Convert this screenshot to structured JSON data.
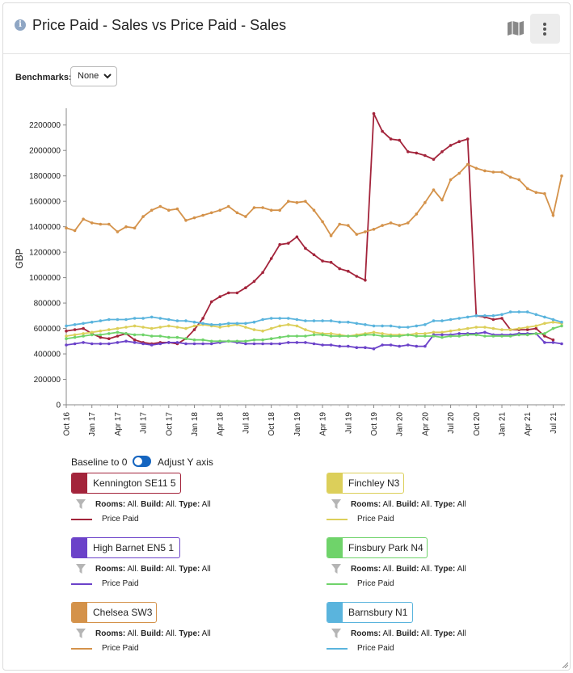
{
  "header": {
    "title": "Price Paid - Sales vs Price Paid - Sales",
    "info_icon": "info-icon",
    "map_icon": "map-icon",
    "menu_icon": "more-vertical-icon"
  },
  "benchmarks": {
    "label": "Benchmarks:",
    "value": "None"
  },
  "controls": {
    "baseline_label": "Baseline to 0",
    "adjust_label": "Adjust Y axis",
    "baseline_on": true
  },
  "chart_data": {
    "type": "line",
    "ylabel": "GBP",
    "ylim": [
      0,
      2300000
    ],
    "yticks": [
      0,
      200000,
      400000,
      600000,
      800000,
      1000000,
      1200000,
      1400000,
      1600000,
      1800000,
      2000000,
      2200000
    ],
    "xtick_labels": [
      "Oct 16",
      "Jan 17",
      "Apr 17",
      "Jul 17",
      "Oct 17",
      "Jan 18",
      "Apr 18",
      "Jul 18",
      "Oct 18",
      "Jan 19",
      "Apr 19",
      "Jul 19",
      "Oct 19",
      "Jan 20",
      "Apr 20",
      "Jul 20",
      "Oct 20",
      "Jan 21",
      "Apr 21",
      "Jul 21"
    ],
    "months_count": 59,
    "series": [
      {
        "name": "Kennington SE11 5",
        "color": "#a3243b",
        "values": [
          580000,
          590000,
          600000,
          560000,
          530000,
          520000,
          540000,
          560000,
          510000,
          490000,
          480000,
          490000,
          490000,
          480000,
          520000,
          590000,
          680000,
          810000,
          850000,
          880000,
          880000,
          920000,
          970000,
          1040000,
          1150000,
          1260000,
          1270000,
          1320000,
          1230000,
          1180000,
          1130000,
          1120000,
          1070000,
          1050000,
          1010000,
          980000,
          2290000,
          2150000,
          2090000,
          2080000,
          1990000,
          1980000,
          1960000,
          1930000,
          1990000,
          2040000,
          2070000,
          2090000,
          700000,
          690000,
          670000,
          680000,
          590000,
          590000,
          590000,
          600000,
          540000,
          510000,
          null
        ]
      },
      {
        "name": "Finchley N3",
        "color": "#dccf5a",
        "values": [
          540000,
          550000,
          560000,
          570000,
          580000,
          590000,
          600000,
          610000,
          620000,
          610000,
          600000,
          610000,
          620000,
          610000,
          600000,
          620000,
          630000,
          620000,
          610000,
          620000,
          630000,
          610000,
          590000,
          580000,
          600000,
          620000,
          630000,
          620000,
          590000,
          570000,
          560000,
          560000,
          550000,
          540000,
          550000,
          560000,
          570000,
          560000,
          550000,
          550000,
          550000,
          560000,
          560000,
          570000,
          570000,
          580000,
          590000,
          600000,
          610000,
          610000,
          600000,
          590000,
          590000,
          600000,
          610000,
          620000,
          640000,
          650000,
          640000
        ]
      },
      {
        "name": "High Barnet EN5 1",
        "color": "#6b42c9",
        "values": [
          470000,
          480000,
          490000,
          480000,
          480000,
          480000,
          490000,
          500000,
          490000,
          480000,
          470000,
          480000,
          490000,
          490000,
          480000,
          480000,
          480000,
          480000,
          490000,
          500000,
          490000,
          480000,
          480000,
          480000,
          480000,
          480000,
          490000,
          490000,
          490000,
          480000,
          470000,
          470000,
          460000,
          460000,
          450000,
          450000,
          440000,
          470000,
          470000,
          460000,
          470000,
          460000,
          460000,
          550000,
          550000,
          550000,
          560000,
          560000,
          560000,
          570000,
          550000,
          550000,
          550000,
          560000,
          560000,
          560000,
          490000,
          490000,
          480000
        ]
      },
      {
        "name": "Finsbury Park N4",
        "color": "#6fd36a",
        "values": [
          520000,
          530000,
          540000,
          550000,
          550000,
          560000,
          570000,
          560000,
          550000,
          550000,
          540000,
          540000,
          530000,
          530000,
          520000,
          510000,
          510000,
          500000,
          500000,
          500000,
          500000,
          500000,
          510000,
          510000,
          520000,
          530000,
          540000,
          540000,
          540000,
          550000,
          550000,
          540000,
          540000,
          540000,
          540000,
          550000,
          550000,
          540000,
          540000,
          540000,
          550000,
          540000,
          540000,
          540000,
          530000,
          540000,
          540000,
          550000,
          550000,
          540000,
          540000,
          540000,
          540000,
          550000,
          550000,
          560000,
          560000,
          600000,
          620000
        ]
      },
      {
        "name": "Chelsea SW3",
        "color": "#d4924a",
        "values": [
          1390000,
          1370000,
          1460000,
          1430000,
          1420000,
          1420000,
          1360000,
          1400000,
          1390000,
          1480000,
          1530000,
          1560000,
          1530000,
          1540000,
          1450000,
          1470000,
          1490000,
          1510000,
          1530000,
          1560000,
          1510000,
          1480000,
          1550000,
          1550000,
          1530000,
          1530000,
          1600000,
          1590000,
          1600000,
          1530000,
          1440000,
          1330000,
          1420000,
          1410000,
          1340000,
          1360000,
          1380000,
          1410000,
          1430000,
          1410000,
          1430000,
          1500000,
          1590000,
          1690000,
          1610000,
          1770000,
          1820000,
          1890000,
          1860000,
          1840000,
          1830000,
          1830000,
          1790000,
          1770000,
          1700000,
          1670000,
          1660000,
          1490000,
          1800000
        ]
      },
      {
        "name": "Barnsbury N1",
        "color": "#5ab4dd",
        "values": [
          620000,
          630000,
          640000,
          650000,
          660000,
          670000,
          670000,
          670000,
          680000,
          680000,
          690000,
          680000,
          670000,
          660000,
          660000,
          650000,
          640000,
          630000,
          630000,
          640000,
          640000,
          640000,
          650000,
          670000,
          680000,
          680000,
          680000,
          670000,
          660000,
          660000,
          660000,
          660000,
          650000,
          650000,
          640000,
          630000,
          620000,
          620000,
          620000,
          610000,
          610000,
          620000,
          630000,
          660000,
          660000,
          670000,
          680000,
          690000,
          700000,
          700000,
          700000,
          710000,
          730000,
          730000,
          730000,
          710000,
          690000,
          670000,
          650000
        ]
      }
    ]
  },
  "legend_items": [
    {
      "name": "Kennington SE11 5",
      "color": "#a3243b",
      "filter_icon": "filter-icon",
      "rooms_label": "Rooms:",
      "rooms_val": "All.",
      "build_label": "Build:",
      "build_val": "All.",
      "type_label": "Type:",
      "type_val": "All",
      "metric": "Price Paid"
    },
    {
      "name": "Finchley N3",
      "color": "#dccf5a",
      "filter_icon": "filter-icon",
      "rooms_label": "Rooms:",
      "rooms_val": "All.",
      "build_label": "Build:",
      "build_val": "All.",
      "type_label": "Type:",
      "type_val": "All",
      "metric": "Price Paid"
    },
    {
      "name": "High Barnet EN5 1",
      "color": "#6b42c9",
      "filter_icon": "filter-icon",
      "rooms_label": "Rooms:",
      "rooms_val": "All.",
      "build_label": "Build:",
      "build_val": "All.",
      "type_label": "Type:",
      "type_val": "All",
      "metric": "Price Paid"
    },
    {
      "name": "Finsbury Park N4",
      "color": "#6fd36a",
      "filter_icon": "filter-icon",
      "rooms_label": "Rooms:",
      "rooms_val": "All.",
      "build_label": "Build:",
      "build_val": "All.",
      "type_label": "Type:",
      "type_val": "All",
      "metric": "Price Paid"
    },
    {
      "name": "Chelsea SW3",
      "color": "#d4924a",
      "filter_icon": "filter-icon",
      "rooms_label": "Rooms:",
      "rooms_val": "All.",
      "build_label": "Build:",
      "build_val": "All.",
      "type_label": "Type:",
      "type_val": "All",
      "metric": "Price Paid"
    },
    {
      "name": "Barnsbury N1",
      "color": "#5ab4dd",
      "filter_icon": "filter-icon",
      "rooms_label": "Rooms:",
      "rooms_val": "All.",
      "build_label": "Build:",
      "build_val": "All.",
      "type_label": "Type:",
      "type_val": "All",
      "metric": "Price Paid"
    }
  ]
}
